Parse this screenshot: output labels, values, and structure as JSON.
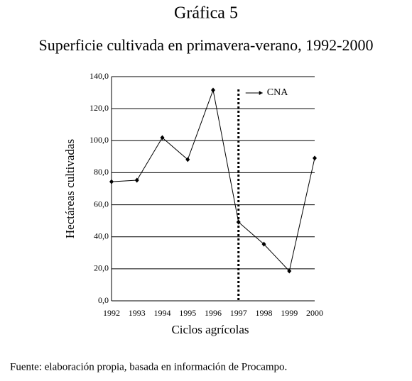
{
  "chart_data": {
    "type": "line",
    "title": "Gráfica 5",
    "subtitle": "Superficie cultivada en primavera-verano, 1992-2000",
    "y_label": "Hectáreas cultivadas",
    "x_label": "Ciclos agrícolas",
    "source": "Fuente: elaboración propia, basada en información de Procampo.",
    "categories": [
      "1992",
      "1993",
      "1994",
      "1995",
      "1996",
      "1997",
      "1998",
      "1999",
      "2000"
    ],
    "values": [
      74.4,
      75.3,
      101.9,
      88.2,
      131.6,
      49.2,
      35.4,
      18.6,
      89.1
    ],
    "color": "#000000",
    "ylim": [
      0,
      140
    ],
    "yticks": [
      {
        "value": 0,
        "label": "0,0"
      },
      {
        "value": 20,
        "label": "20,0"
      },
      {
        "value": 40,
        "label": "40,0"
      },
      {
        "value": 60,
        "label": "60,0"
      },
      {
        "value": 80,
        "label": "80,0"
      },
      {
        "value": 100,
        "label": "100,0"
      },
      {
        "value": 120,
        "label": "120,0"
      },
      {
        "value": 140,
        "label": "140,0"
      }
    ],
    "grid": true,
    "vline": {
      "at": "1997",
      "label": "CNA"
    }
  }
}
